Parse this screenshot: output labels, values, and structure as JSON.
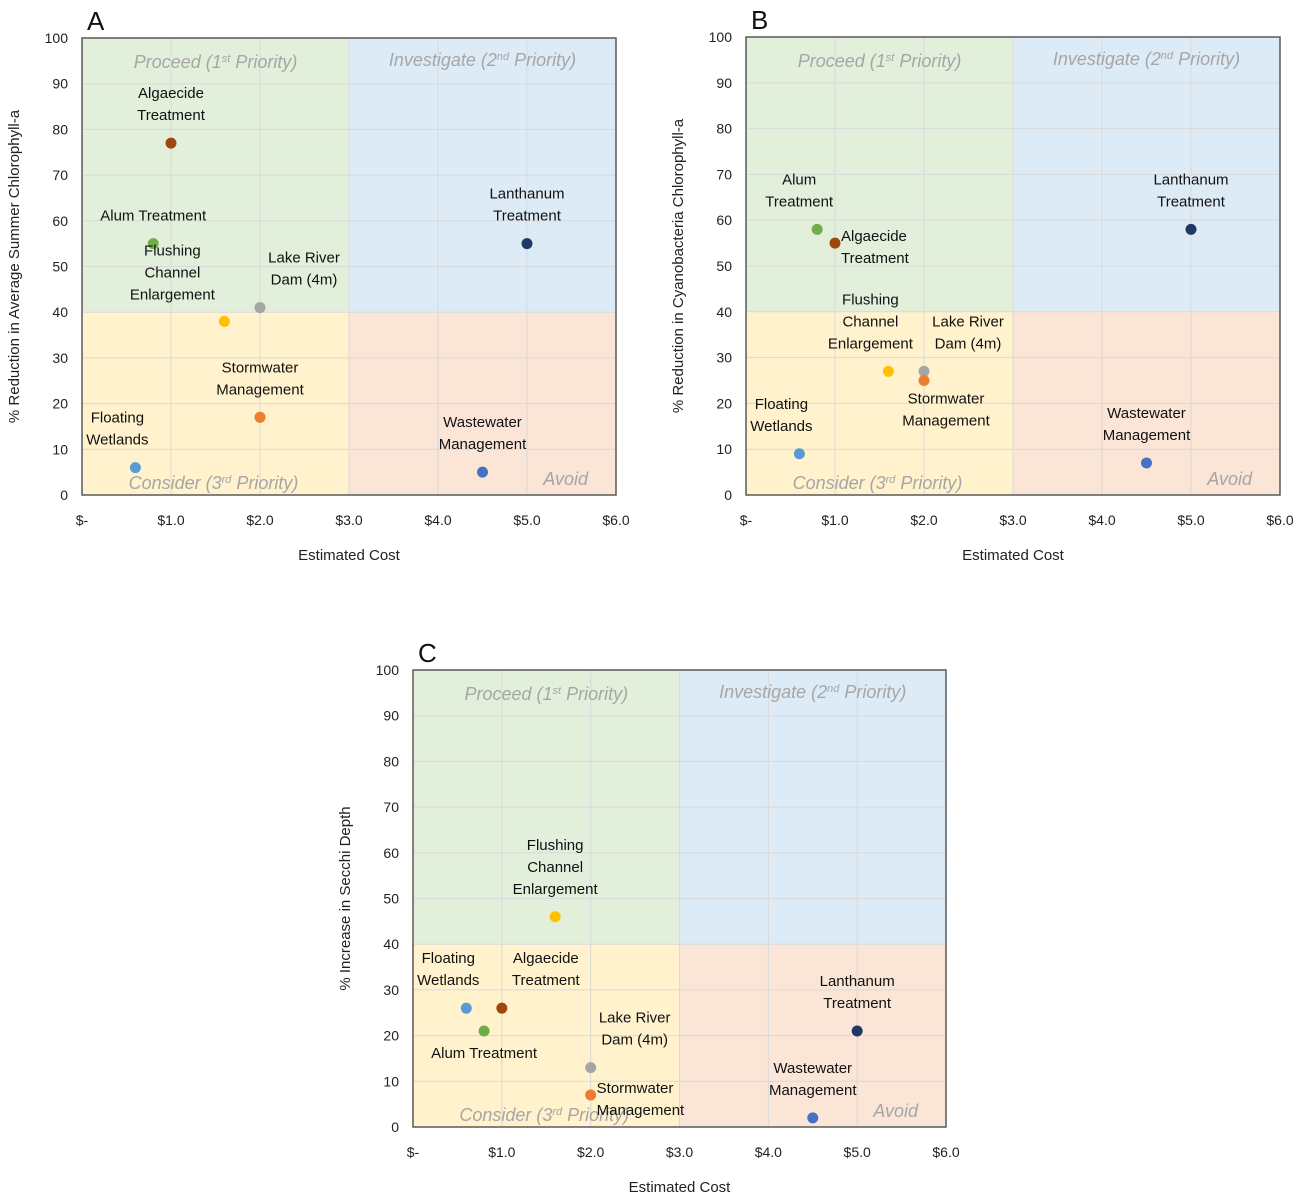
{
  "colors": {
    "proceed_bg": "#e2efda",
    "investigate_bg": "#ddebf7",
    "consider_bg": "#fff2cc",
    "avoid_bg": "#fbe5d6",
    "grid": "#d9d9d9",
    "frame": "#595959"
  },
  "quadrant_labels": {
    "proceed": [
      "Proceed (1",
      "st",
      " Priority)"
    ],
    "investigate": [
      "Investigate (2",
      "nd",
      " Priority)"
    ],
    "consider": [
      "Consider (3",
      "rd",
      " Priority)"
    ],
    "avoid": [
      "Avoid"
    ]
  },
  "chart_data": [
    {
      "panel": "A",
      "type": "scatter",
      "xlabel": "Estimated Cost",
      "ylabel": "% Reduction in Average Summer Chlorophyll-a",
      "xlim": [
        0,
        6
      ],
      "ylim": [
        0,
        100
      ],
      "x_tick_labels": [
        "$-",
        "$1.0",
        "$2.0",
        "$3.0",
        "$4.0",
        "$5.0",
        "$6.0"
      ],
      "y_tick_labels": [
        "0",
        "10",
        "20",
        "30",
        "40",
        "50",
        "60",
        "70",
        "80",
        "90",
        "100"
      ],
      "quadrant_split": {
        "x": 3,
        "y": 40
      },
      "points": [
        {
          "label": [
            "Algaecide",
            "Treatment"
          ],
          "x": 1.0,
          "y": 77,
          "color": "#9e480e",
          "label_anchor": "above"
        },
        {
          "label": [
            "Alum Treatment"
          ],
          "x": 0.8,
          "y": 55,
          "color": "#70ad47",
          "label_anchor": "above"
        },
        {
          "label": [
            "Lanthanum",
            "Treatment"
          ],
          "x": 5.0,
          "y": 55,
          "color": "#203864",
          "label_anchor": "above"
        },
        {
          "label": [
            "Lake River",
            "Dam (4m)"
          ],
          "x": 2.0,
          "y": 41,
          "color": "#a5a5a5",
          "label_anchor": "above-right"
        },
        {
          "label": [
            "Flushing",
            "Channel",
            "Enlargement"
          ],
          "x": 1.6,
          "y": 38,
          "color": "#ffc000",
          "label_anchor": "left"
        },
        {
          "label": [
            "Stormwater",
            "Management"
          ],
          "x": 2.0,
          "y": 17,
          "color": "#ed7d31",
          "label_anchor": "above"
        },
        {
          "label": [
            "Floating",
            "Wetlands"
          ],
          "x": 0.6,
          "y": 6,
          "color": "#5b9bd5",
          "label_anchor": "above-left"
        },
        {
          "label": [
            "Wastewater",
            "Management"
          ],
          "x": 4.5,
          "y": 5,
          "color": "#4472c4",
          "label_anchor": "above"
        }
      ]
    },
    {
      "panel": "B",
      "type": "scatter",
      "xlabel": "Estimated Cost",
      "ylabel": "% Reduction in Cyanobacteria Chlorophyll-a",
      "xlim": [
        0,
        6
      ],
      "ylim": [
        0,
        100
      ],
      "x_tick_labels": [
        "$-",
        "$1.0",
        "$2.0",
        "$3.0",
        "$4.0",
        "$5.0",
        "$6.0"
      ],
      "y_tick_labels": [
        "0",
        "10",
        "20",
        "30",
        "40",
        "50",
        "60",
        "70",
        "80",
        "90",
        "100"
      ],
      "quadrant_split": {
        "x": 3,
        "y": 40
      },
      "points": [
        {
          "label": [
            "Alum",
            "Treatment"
          ],
          "x": 0.8,
          "y": 58,
          "color": "#70ad47",
          "label_anchor": "above-left"
        },
        {
          "label": [
            "Algaecide",
            "Treatment"
          ],
          "x": 1.0,
          "y": 55,
          "color": "#9e480e",
          "label_anchor": "right"
        },
        {
          "label": [
            "Lanthanum",
            "Treatment"
          ],
          "x": 5.0,
          "y": 58,
          "color": "#203864",
          "label_anchor": "above"
        },
        {
          "label": [
            "Flushing",
            "Channel",
            "Enlargement"
          ],
          "x": 1.6,
          "y": 27,
          "color": "#ffc000",
          "label_anchor": "above-left"
        },
        {
          "label": [
            "Lake River",
            "Dam (4m)"
          ],
          "x": 2.0,
          "y": 27,
          "color": "#a5a5a5",
          "label_anchor": "above-right"
        },
        {
          "label": [
            "Stormwater",
            "Management"
          ],
          "x": 2.0,
          "y": 25,
          "color": "#ed7d31",
          "label_anchor": "below-right"
        },
        {
          "label": [
            "Floating",
            "Wetlands"
          ],
          "x": 0.6,
          "y": 9,
          "color": "#5b9bd5",
          "label_anchor": "above-left"
        },
        {
          "label": [
            "Wastewater",
            "Management"
          ],
          "x": 4.5,
          "y": 7,
          "color": "#4472c4",
          "label_anchor": "above"
        }
      ]
    },
    {
      "panel": "C",
      "type": "scatter",
      "xlabel": "Estimated Cost",
      "ylabel": "% Increase in Secchi Depth",
      "xlim": [
        0,
        6
      ],
      "ylim": [
        0,
        100
      ],
      "x_tick_labels": [
        "$-",
        "$1.0",
        "$2.0",
        "$3.0",
        "$4.0",
        "$5.0",
        "$6.0"
      ],
      "y_tick_labels": [
        "0",
        "10",
        "20",
        "30",
        "40",
        "50",
        "60",
        "70",
        "80",
        "90",
        "100"
      ],
      "quadrant_split": {
        "x": 3,
        "y": 40
      },
      "points": [
        {
          "label": [
            "Flushing",
            "Channel",
            "Enlargement"
          ],
          "x": 1.6,
          "y": 46,
          "color": "#ffc000",
          "label_anchor": "above"
        },
        {
          "label": [
            "Floating",
            "Wetlands"
          ],
          "x": 0.6,
          "y": 26,
          "color": "#5b9bd5",
          "label_anchor": "above-left"
        },
        {
          "label": [
            "Algaecide",
            "Treatment"
          ],
          "x": 1.0,
          "y": 26,
          "color": "#9e480e",
          "label_anchor": "above-right"
        },
        {
          "label": [
            "Alum Treatment"
          ],
          "x": 0.8,
          "y": 21,
          "color": "#70ad47",
          "label_anchor": "below"
        },
        {
          "label": [
            "Lake River",
            "Dam (4m)"
          ],
          "x": 2.0,
          "y": 13,
          "color": "#a5a5a5",
          "label_anchor": "above-right"
        },
        {
          "label": [
            "Stormwater",
            "Management"
          ],
          "x": 2.0,
          "y": 7,
          "color": "#ed7d31",
          "label_anchor": "right"
        },
        {
          "label": [
            "Lanthanum",
            "Treatment"
          ],
          "x": 5.0,
          "y": 21,
          "color": "#203864",
          "label_anchor": "above"
        },
        {
          "label": [
            "Wastewater",
            "Management"
          ],
          "x": 4.5,
          "y": 2,
          "color": "#4472c4",
          "label_anchor": "above"
        }
      ]
    }
  ]
}
